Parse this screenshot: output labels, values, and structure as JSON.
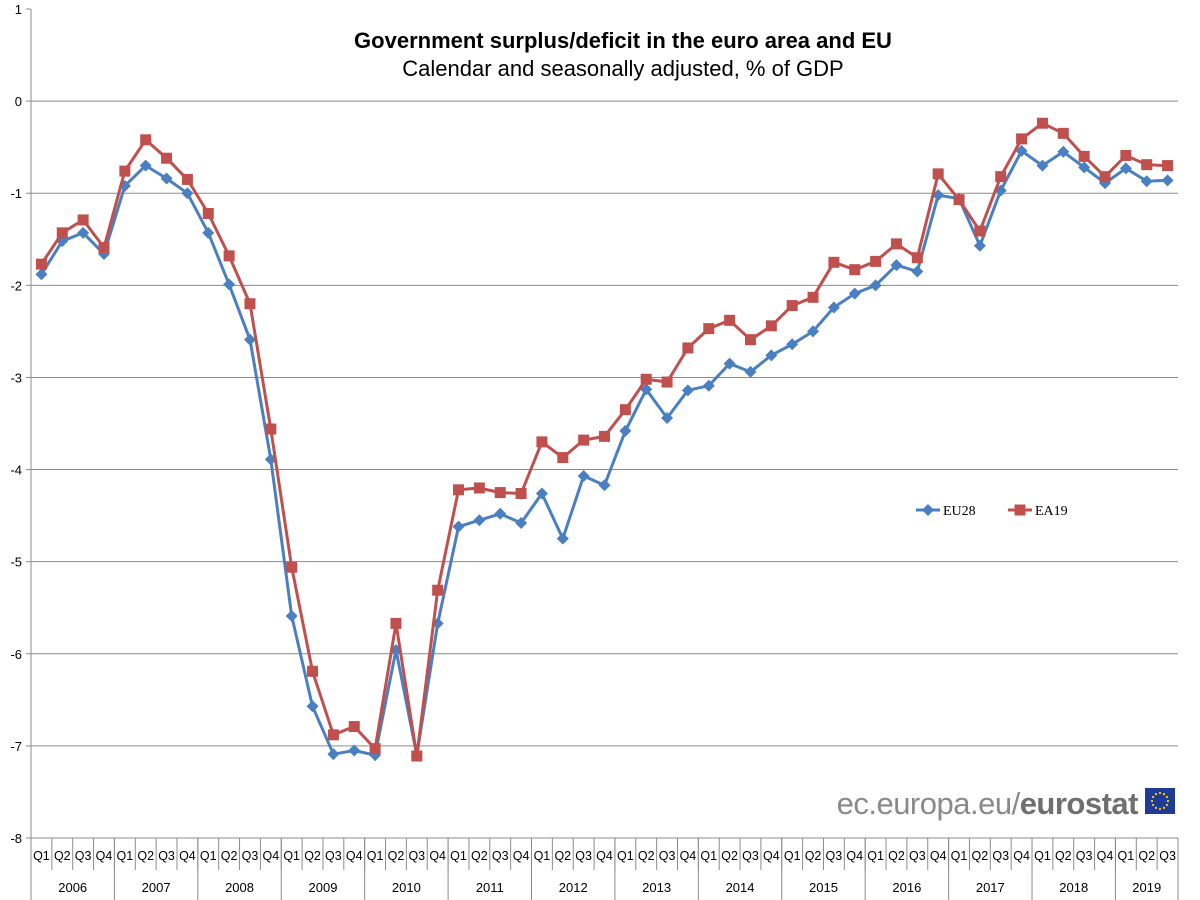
{
  "chart_data": {
    "type": "line",
    "title": "Government surplus/deficit in the euro area and EU",
    "subtitle": "Calendar and seasonally adjusted, % of GDP",
    "ylim": [
      -8,
      1
    ],
    "yticks": [
      "1",
      "0",
      "-1",
      "-2",
      "-3",
      "-4",
      "-5",
      "-6",
      "-7",
      "-8"
    ],
    "grid": true,
    "legend_position": "right-middle",
    "quarters": [
      "Q1",
      "Q2",
      "Q3",
      "Q4"
    ],
    "years": [
      "2006",
      "2007",
      "2008",
      "2009",
      "2010",
      "2011",
      "2012",
      "2013",
      "2014",
      "2015",
      "2016",
      "2017",
      "2018",
      "2019"
    ],
    "series": [
      {
        "name": "EU28",
        "color": "#4a7fc1",
        "marker": "diamond",
        "values": [
          -1.88,
          -1.52,
          -1.43,
          -1.66,
          -0.92,
          -0.7,
          -0.84,
          -1.0,
          -1.43,
          -1.99,
          -2.59,
          -3.89,
          -5.59,
          -6.57,
          -7.09,
          -7.05,
          -7.1,
          -5.96,
          -7.1,
          -5.67,
          -4.62,
          -4.55,
          -4.48,
          -4.58,
          -4.26,
          -4.75,
          -4.07,
          -4.17,
          -3.58,
          -3.13,
          -3.44,
          -3.14,
          -3.09,
          -2.85,
          -2.94,
          -2.76,
          -2.64,
          -2.5,
          -2.24,
          -2.09,
          -2.0,
          -1.78,
          -1.85,
          -1.02,
          -1.06,
          -1.57,
          -0.97,
          -0.54,
          -0.7,
          -0.55,
          -0.72,
          -0.89,
          -0.73,
          -0.87,
          -0.86
        ]
      },
      {
        "name": "EA19",
        "color": "#c0504d",
        "marker": "square",
        "values": [
          -1.77,
          -1.43,
          -1.29,
          -1.59,
          -0.76,
          -0.42,
          -0.62,
          -0.85,
          -1.22,
          -1.68,
          -2.2,
          -3.56,
          -5.06,
          -6.19,
          -6.88,
          -6.79,
          -7.03,
          -5.67,
          -7.11,
          -5.31,
          -4.22,
          -4.2,
          -4.25,
          -4.26,
          -3.7,
          -3.87,
          -3.68,
          -3.64,
          -3.35,
          -3.02,
          -3.05,
          -2.68,
          -2.47,
          -2.38,
          -2.59,
          -2.44,
          -2.22,
          -2.13,
          -1.75,
          -1.83,
          -1.74,
          -1.55,
          -1.7,
          -0.79,
          -1.07,
          -1.41,
          -0.82,
          -0.41,
          -0.24,
          -0.35,
          -0.6,
          -0.82,
          -0.59,
          -0.69,
          -0.7
        ]
      }
    ]
  },
  "watermark": {
    "prefix": "ec.europa.eu/",
    "brand": "eurostat"
  }
}
